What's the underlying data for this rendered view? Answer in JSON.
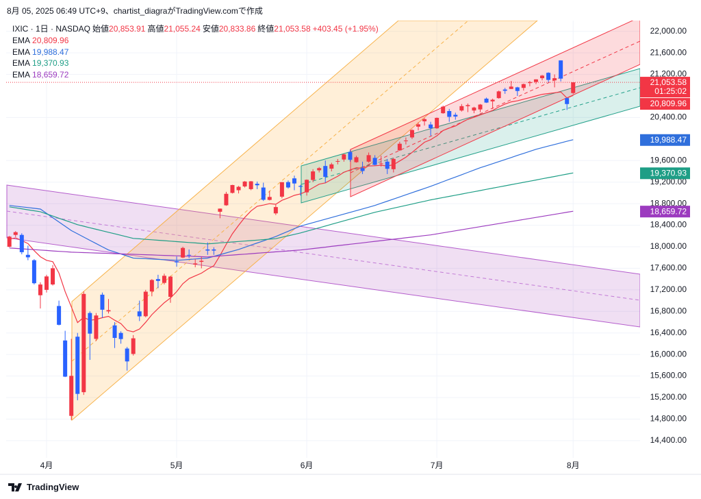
{
  "chart_data": {
    "type": "candlestick",
    "credit": "8月 05, 2025 06:49 UTC+9、chartist_diagraがTradingView.comで作成",
    "brand": "TradingView",
    "symbol": "IXIC · 1日 · NASDAQ",
    "ohlc_legend": [
      {
        "name": "始値",
        "value": "20,853.91"
      },
      {
        "name": "高値",
        "value": "21,055.24"
      },
      {
        "name": "安値",
        "value": "20,833.86"
      },
      {
        "name": "終値",
        "value": "21,053.58"
      }
    ],
    "change": "+403.45 (+1.95%)",
    "countdown": "01:25:02",
    "grid": true,
    "categories": [
      null,
      null,
      null,
      null,
      null,
      null,
      "4月",
      null,
      null,
      null,
      null,
      null,
      null,
      null,
      null,
      null,
      null,
      null,
      null,
      null,
      null,
      null,
      null,
      null,
      null,
      null,
      null,
      "5月",
      null,
      null,
      null,
      null,
      null,
      null,
      null,
      null,
      null,
      null,
      null,
      null,
      null,
      null,
      null,
      null,
      null,
      null,
      null,
      null,
      "6月",
      null,
      null,
      null,
      null,
      null,
      null,
      null,
      null,
      null,
      null,
      null,
      null,
      null,
      null,
      null,
      null,
      null,
      null,
      null,
      null,
      "7月",
      null,
      null,
      null,
      null,
      null,
      null,
      null,
      null,
      null,
      null,
      null,
      null,
      null,
      null,
      null,
      null,
      null,
      null,
      null,
      null,
      null,
      "8月",
      null
    ],
    "series": [
      {
        "name": "IXIC",
        "up_color": "#f23645",
        "down_color": "#2962ff",
        "last_close_label": "21,053.58",
        "open": [
          18000,
          18220,
          18220,
          17850,
          17750,
          17100,
          17200,
          17300,
          16900,
          16260,
          14860,
          16330,
          15300,
          16770,
          16290,
          17110,
          16800,
          16540,
          16400,
          16110,
          16010,
          16800,
          16710,
          17170,
          17400,
          17330,
          17070,
          17730,
          17800,
          17850,
          17670,
          17720,
          17950,
          17950,
          18650,
          18770,
          19000,
          19050,
          19120,
          19070,
          19170,
          19100,
          18870,
          18620,
          18930,
          19200,
          19270,
          19130,
          19010,
          19240,
          19420,
          19500,
          19450,
          19580,
          19620,
          19760,
          19570,
          19460,
          19580,
          19650,
          19540,
          19580,
          19440,
          19790,
          19960,
          20030,
          20230,
          20330,
          20270,
          20200,
          20480,
          20520,
          20450,
          20530,
          20610,
          20530,
          20550,
          20750,
          20700,
          20760,
          20920,
          20930,
          20960,
          20950,
          21040,
          21060,
          21130,
          21230,
          21090,
          21460,
          20760,
          20853.91
        ],
        "high": [
          18200,
          18290,
          18250,
          18020,
          17770,
          17340,
          17480,
          17660,
          17000,
          16440,
          16290,
          16400,
          17170,
          16800,
          16770,
          17150,
          17030,
          16600,
          16430,
          16140,
          16360,
          17000,
          17200,
          17400,
          17480,
          17500,
          17460,
          17820,
          18000,
          17950,
          17770,
          17810,
          18080,
          17990,
          18710,
          19020,
          19150,
          19130,
          19220,
          19220,
          19210,
          19190,
          19040,
          18780,
          19200,
          19230,
          19320,
          19150,
          19250,
          19440,
          19480,
          19600,
          19560,
          19630,
          19730,
          19800,
          19690,
          19580,
          19750,
          19700,
          19690,
          19630,
          19650,
          19950,
          20030,
          20180,
          20310,
          20390,
          20320,
          20400,
          20620,
          20560,
          20490,
          20650,
          20660,
          20600,
          20650,
          20770,
          20750,
          20900,
          20950,
          21080,
          20970,
          21030,
          21080,
          21110,
          21190,
          21240,
          21200,
          21460,
          20770,
          21055.24
        ],
        "low": [
          17990,
          18180,
          17860,
          17750,
          17300,
          16854,
          17150,
          17280,
          16540,
          15580,
          14784,
          15150,
          15250,
          15900,
          16250,
          16680,
          16760,
          16120,
          16200,
          15700,
          15980,
          16620,
          16690,
          17080,
          17230,
          17300,
          16960,
          17630,
          17790,
          17790,
          17620,
          17600,
          17850,
          17850,
          18530,
          18760,
          18990,
          18990,
          19100,
          19050,
          19070,
          18850,
          18860,
          18590,
          18900,
          19080,
          19050,
          18950,
          18950,
          19200,
          19380,
          19190,
          19400,
          19530,
          19580,
          19580,
          19560,
          19350,
          19560,
          19510,
          19490,
          19350,
          19380,
          19780,
          19900,
          20000,
          20160,
          20250,
          20060,
          20190,
          20470,
          20320,
          20360,
          20510,
          20500,
          20480,
          20500,
          20670,
          20560,
          20750,
          20840,
          20930,
          20800,
          20900,
          20980,
          21020,
          21090,
          21050,
          20960,
          21070,
          20540,
          20833.86
        ],
        "close": [
          18188,
          18271,
          17899,
          17804,
          17323,
          17299,
          17449,
          17601,
          16551,
          15588,
          15603,
          15268,
          17124,
          16387,
          16724,
          16831,
          16823,
          16307,
          16286,
          15871,
          16300,
          16708,
          17166,
          17383,
          17366,
          17461,
          17446,
          17710,
          17978,
          17844,
          17690,
          17739,
          17929,
          17929,
          18708,
          18983,
          19146,
          19113,
          19211,
          19215,
          19142,
          18872,
          18925,
          18737,
          19199,
          19101,
          19175,
          19114,
          19243,
          19399,
          19460,
          19298,
          19530,
          19591,
          19715,
          19615,
          19662,
          19407,
          19701,
          19521,
          19546,
          19447,
          19631,
          19913,
          19973,
          20168,
          20273,
          20370,
          20202,
          20393,
          20601,
          20412,
          20418,
          20611,
          20630,
          20585,
          20640,
          20677,
          20730,
          20885,
          20896,
          20974,
          20892,
          21020,
          21057,
          21108,
          21178,
          21098,
          21130,
          21122,
          20650,
          21053.58
        ]
      }
    ],
    "overlays": [
      {
        "type": "line",
        "name": "EMA",
        "color": "#f23645",
        "last_label": "20,809.96",
        "values": [
          18140,
          18164,
          18116,
          18060,
          17927,
          17814,
          17748,
          17722,
          17511,
          17165,
          16884,
          16593,
          16689,
          16635,
          16651,
          16683,
          16708,
          16636,
          16573,
          16447,
          16421,
          16473,
          16598,
          16739,
          16852,
          16962,
          17049,
          17168,
          17314,
          17409,
          17460,
          17510,
          17585,
          17647,
          17838,
          18044,
          18242,
          18399,
          18545,
          18666,
          18752,
          18774,
          18801,
          18789,
          18863,
          18906,
          18954,
          18983,
          19030,
          19096,
          19162,
          19186,
          19248,
          19310,
          19383,
          19425,
          19468,
          19457,
          19501,
          19505,
          19512,
          19500,
          19524,
          19594,
          19662,
          19753,
          19847,
          19941,
          19988,
          20061,
          20158,
          20204,
          20243,
          20309,
          20367,
          20406,
          20448,
          20489,
          20532,
          20596,
          20650,
          20690,
          20710,
          20740,
          20770,
          20800,
          20830,
          20845,
          20860,
          20875,
          20760,
          20809.96
        ]
      },
      {
        "type": "line",
        "name": "EMA",
        "color": "#2f6fdc",
        "last_label": "19,988.47",
        "values": [
          18767,
          18754,
          18741,
          18728,
          18714,
          18700,
          18620,
          18540,
          18460,
          18380,
          18300,
          18240,
          18180,
          18120,
          18060,
          18000,
          17940,
          17903,
          17865,
          17828,
          17790,
          17784,
          17778,
          17772,
          17766,
          17760,
          17754,
          17748,
          17756,
          17765,
          17773,
          17782,
          17790,
          17822,
          17854,
          17886,
          17918,
          17950,
          17990,
          18030,
          18070,
          18110,
          18150,
          18190,
          18239,
          18287,
          18336,
          18384,
          18416,
          18448,
          18480,
          18512,
          18544,
          18575,
          18607,
          18639,
          18671,
          18703,
          18735,
          18767,
          18807,
          18846,
          18886,
          18925,
          18965,
          19004,
          19044,
          19083,
          19123,
          19166,
          19209,
          19252,
          19295,
          19338,
          19381,
          19424,
          19467,
          19505,
          19543,
          19581,
          19619,
          19657,
          19696,
          19734,
          19772,
          19810,
          19840,
          19870,
          19899,
          19929,
          19959,
          19988.47
        ]
      },
      {
        "type": "line",
        "name": "EMA",
        "color": "#1e9e86",
        "last_label": "19,370.93",
        "values": [
          18741,
          18723,
          18705,
          18686,
          18668,
          18650,
          18610,
          18570,
          18530,
          18490,
          18450,
          18410,
          18382,
          18353,
          18325,
          18297,
          18268,
          18240,
          18212,
          18183,
          18155,
          18147,
          18138,
          18130,
          18121,
          18113,
          18105,
          18096,
          18088,
          18079,
          18071,
          18062,
          18054,
          18063,
          18072,
          18080,
          18089,
          18098,
          18106,
          18115,
          18124,
          18133,
          18141,
          18150,
          18177,
          18204,
          18230,
          18257,
          18289,
          18321,
          18353,
          18385,
          18417,
          18449,
          18481,
          18513,
          18545,
          18576,
          18608,
          18640,
          18666,
          18691,
          18717,
          18742,
          18768,
          18793,
          18819,
          18844,
          18870,
          18892,
          18914,
          18935,
          18957,
          18979,
          19001,
          19022,
          19044,
          19066,
          19088,
          19110,
          19131,
          19153,
          19175,
          19197,
          19218,
          19240,
          19262,
          19284,
          19305,
          19327,
          19349,
          19370.93
        ]
      },
      {
        "type": "line",
        "name": "EMA",
        "color": "#9c3bbf",
        "last_label": "18,659.72",
        "values": [
          17977,
          17969,
          17962,
          17954,
          17946,
          17939,
          17931,
          17923,
          17915,
          17908,
          17900,
          17896,
          17892,
          17888,
          17884,
          17880,
          17876,
          17872,
          17868,
          17864,
          17860,
          17856,
          17852,
          17848,
          17844,
          17840,
          17836,
          17832,
          17828,
          17824,
          17820,
          17816,
          17812,
          17821,
          17829,
          17838,
          17846,
          17855,
          17863,
          17872,
          17880,
          17889,
          17897,
          17906,
          17914,
          17923,
          17931,
          17940,
          17953,
          17967,
          17980,
          17993,
          18007,
          18020,
          18033,
          18047,
          18060,
          18073,
          18087,
          18100,
          18113,
          18127,
          18140,
          18153,
          18167,
          18180,
          18193,
          18207,
          18220,
          18239,
          18258,
          18277,
          18296,
          18316,
          18335,
          18354,
          18373,
          18392,
          18411,
          18430,
          18449,
          18468,
          18488,
          18507,
          18526,
          18545,
          18564,
          18583,
          18602,
          18621,
          18641,
          18659.72
        ]
      }
    ],
    "ylim": [
      14080,
      22200
    ],
    "yticks": [
      {
        "value": 22000,
        "label": "22,000.00"
      },
      {
        "value": 21600,
        "label": "21,600.00"
      },
      {
        "value": 21200,
        "label": "21,200.00"
      },
      {
        "value": 20400,
        "label": "20,400.00"
      },
      {
        "value": 19600,
        "label": "19,600.00"
      },
      {
        "value": 19200,
        "label": "19,200.00"
      },
      {
        "value": 18800,
        "label": "18,800.00"
      },
      {
        "value": 18400,
        "label": "18,400.00"
      },
      {
        "value": 18000,
        "label": "18,000.00"
      },
      {
        "value": 17600,
        "label": "17,600.00"
      },
      {
        "value": 17200,
        "label": "17,200.00"
      },
      {
        "value": 16800,
        "label": "16,800.00"
      },
      {
        "value": 16400,
        "label": "16,400.00"
      },
      {
        "value": 16000,
        "label": "16,000.00"
      },
      {
        "value": 15600,
        "label": "15,600.00"
      },
      {
        "value": 15200,
        "label": "15,200.00"
      },
      {
        "value": 14800,
        "label": "14,800.00"
      },
      {
        "value": 14400,
        "label": "14,400.00"
      }
    ]
  }
}
